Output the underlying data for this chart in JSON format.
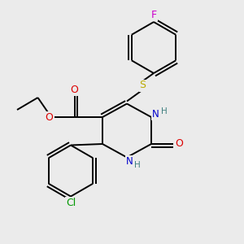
{
  "background_color": "#ebebeb",
  "dpi": 100,
  "atom_colors": {
    "C": "#000000",
    "N": "#0000cc",
    "O": "#dd0000",
    "S": "#bbaa00",
    "F": "#cc00cc",
    "Cl": "#009900",
    "H": "#408080"
  },
  "bond_color": "#000000",
  "bond_width": 1.4
}
